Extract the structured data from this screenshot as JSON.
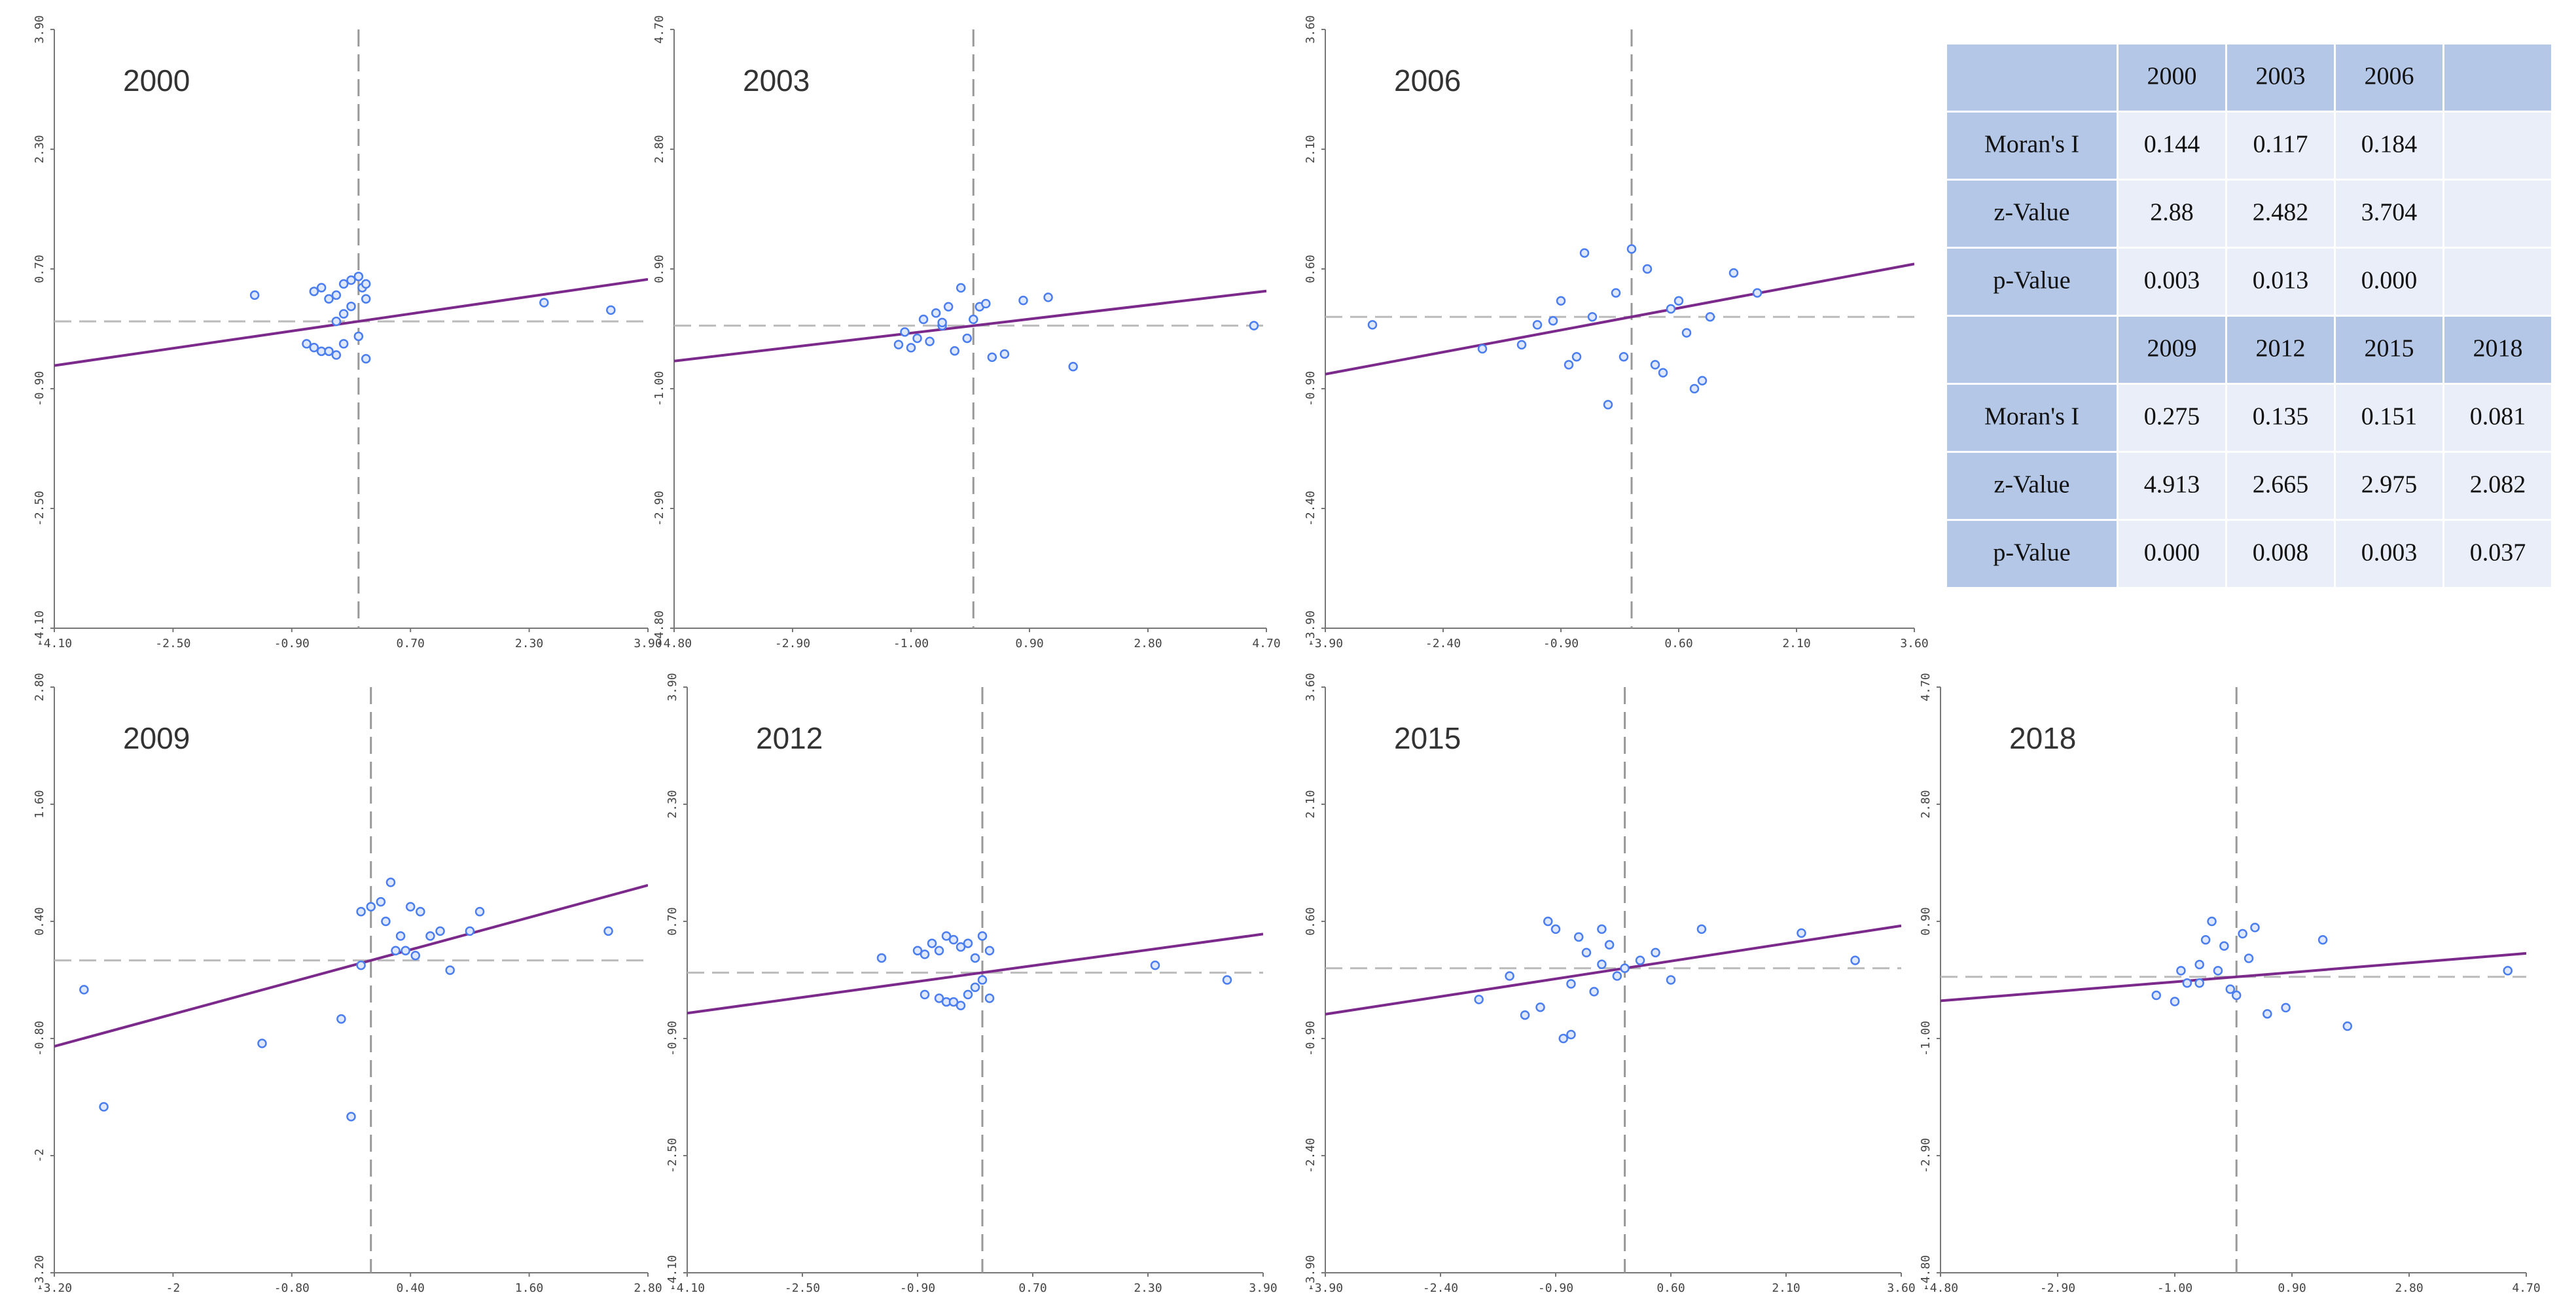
{
  "chart_data": [
    {
      "type": "scatter",
      "title": "2000",
      "color": "#4a7ef0",
      "line_color": "#7b2a8c",
      "xlim": [
        -4.1,
        3.9
      ],
      "ylim": [
        -4.1,
        3.9
      ],
      "xticks": [
        {
          "value": -4.1,
          "label": "-4.10"
        },
        {
          "value": -2.5,
          "label": "-2.50"
        },
        {
          "value": -0.9,
          "label": "-0.90"
        },
        {
          "value": 0.7,
          "label": "0.70"
        },
        {
          "value": 2.3,
          "label": "2.30"
        },
        {
          "value": 3.9,
          "label": "3.90"
        }
      ],
      "yticks": [
        {
          "value": -4.1,
          "label": "-4.10"
        },
        {
          "value": -2.5,
          "label": "-2.50"
        },
        {
          "value": -0.9,
          "label": "-0.90"
        },
        {
          "value": 0.7,
          "label": "0.70"
        },
        {
          "value": 2.3,
          "label": "2.30"
        },
        {
          "value": 3.9,
          "label": "3.90"
        }
      ],
      "x": [
        -1.4,
        -0.6,
        -0.5,
        -0.4,
        -0.3,
        -0.2,
        -0.1,
        0,
        0.05,
        0.1,
        0.1,
        -0.2,
        -0.3,
        -0.7,
        -0.6,
        -0.5,
        -0.4,
        -0.3,
        -0.2,
        0.1,
        0,
        -0.1,
        2.5,
        3.4
      ],
      "y": [
        0.35,
        0.4,
        0.45,
        0.3,
        0.35,
        0.5,
        0.55,
        0.6,
        0.45,
        0.3,
        0.5,
        0.1,
        0.0,
        -0.3,
        -0.35,
        -0.4,
        -0.4,
        -0.45,
        -0.3,
        -0.5,
        -0.2,
        0.2,
        0.25,
        0.15
      ]
    },
    {
      "type": "scatter",
      "title": "2003",
      "color": "#4a7ef0",
      "line_color": "#7b2a8c",
      "xlim": [
        -4.8,
        4.7
      ],
      "ylim": [
        -4.8,
        4.7
      ],
      "xticks": [
        {
          "value": -4.8,
          "label": "-4.80"
        },
        {
          "value": -2.9,
          "label": "-2.90"
        },
        {
          "value": -1.0,
          "label": "-1.00"
        },
        {
          "value": 0.9,
          "label": "0.90"
        },
        {
          "value": 2.8,
          "label": "2.80"
        },
        {
          "value": 4.7,
          "label": "4.70"
        }
      ],
      "yticks": [
        {
          "value": -4.8,
          "label": "-4.80"
        },
        {
          "value": -2.9,
          "label": "-2.90"
        },
        {
          "value": -1.0,
          "label": "-1.00"
        },
        {
          "value": 0.9,
          "label": "0.90"
        },
        {
          "value": 2.8,
          "label": "2.80"
        },
        {
          "value": 4.7,
          "label": "4.70"
        }
      ],
      "x": [
        -1.2,
        -1.1,
        -1.0,
        -0.9,
        -0.8,
        -0.7,
        -0.6,
        -0.5,
        -0.4,
        -0.3,
        -0.2,
        -0.1,
        0,
        0.1,
        0.2,
        0.3,
        0.5,
        0.8,
        1.2,
        1.6,
        -0.5,
        4.5
      ],
      "y": [
        -0.3,
        -0.1,
        -0.35,
        -0.2,
        0.1,
        -0.25,
        0.2,
        0.0,
        0.3,
        -0.4,
        0.6,
        -0.2,
        0.1,
        0.3,
        0.35,
        -0.5,
        -0.45,
        0.4,
        0.45,
        -0.65,
        0.05,
        0.0
      ]
    },
    {
      "type": "scatter",
      "title": "2006",
      "color": "#4a7ef0",
      "line_color": "#7b2a8c",
      "xlim": [
        -3.9,
        3.6
      ],
      "ylim": [
        -3.9,
        3.6
      ],
      "xticks": [
        {
          "value": -3.9,
          "label": "-3.90"
        },
        {
          "value": -2.4,
          "label": "-2.40"
        },
        {
          "value": -0.9,
          "label": "-0.90"
        },
        {
          "value": 0.6,
          "label": "0.60"
        },
        {
          "value": 2.1,
          "label": "2.10"
        },
        {
          "value": 3.6,
          "label": "3.60"
        }
      ],
      "yticks": [
        {
          "value": -3.9,
          "label": "-3.90"
        },
        {
          "value": -2.4,
          "label": "-2.40"
        },
        {
          "value": -0.9,
          "label": "-0.90"
        },
        {
          "value": 0.6,
          "label": "0.60"
        },
        {
          "value": 2.1,
          "label": "2.10"
        },
        {
          "value": 3.6,
          "label": "3.60"
        }
      ],
      "x": [
        -3.3,
        -1.9,
        -1.4,
        -1.2,
        -1.0,
        -0.9,
        -0.8,
        -0.7,
        -0.6,
        -0.5,
        -0.3,
        -0.2,
        -0.1,
        0,
        0.2,
        0.3,
        0.4,
        0.5,
        0.6,
        0.7,
        0.8,
        0.9,
        1.0,
        1.3,
        1.6
      ],
      "y": [
        -0.1,
        -0.4,
        -0.35,
        -0.1,
        -0.05,
        0.2,
        -0.6,
        -0.5,
        0.8,
        0.0,
        -1.1,
        0.3,
        -0.5,
        0.85,
        0.6,
        -0.6,
        -0.7,
        0.1,
        0.2,
        -0.2,
        -0.9,
        -0.8,
        0.0,
        0.55,
        0.3
      ]
    },
    {
      "type": "scatter",
      "title": "2009",
      "color": "#4a7ef0",
      "line_color": "#7b2a8c",
      "xlim": [
        -3.2,
        2.8
      ],
      "ylim": [
        -3.2,
        2.8
      ],
      "xticks": [
        {
          "value": -3.2,
          "label": "-3.20"
        },
        -2,
        {
          "value": -0.8,
          "label": "-0.80"
        },
        {
          "value": 0.4,
          "label": "0.40"
        },
        {
          "value": 1.6,
          "label": "1.60"
        },
        {
          "value": 2.8,
          "label": "2.80"
        }
      ],
      "yticks": [
        {
          "value": -3.2,
          "label": "-3.20"
        },
        -2,
        {
          "value": -0.8,
          "label": "-0.80"
        },
        {
          "value": 0.4,
          "label": "0.40"
        },
        {
          "value": 1.6,
          "label": "1.60"
        },
        {
          "value": 2.8,
          "label": "2.80"
        }
      ],
      "x": [
        -2.9,
        -2.7,
        -1.1,
        -0.3,
        -0.2,
        -0.1,
        0,
        0.1,
        0.15,
        0.2,
        0.25,
        0.3,
        0.35,
        0.4,
        0.5,
        0.6,
        0.7,
        0.8,
        1.0,
        1.1,
        2.4,
        -0.1,
        0.45
      ],
      "y": [
        -0.3,
        -1.5,
        -0.85,
        -0.6,
        -1.6,
        0.5,
        0.55,
        0.6,
        0.4,
        0.8,
        0.1,
        0.25,
        0.1,
        0.55,
        0.5,
        0.25,
        0.3,
        -0.1,
        0.3,
        0.5,
        0.3,
        -0.05,
        0.05
      ]
    },
    {
      "type": "scatter",
      "title": "2012",
      "color": "#4a7ef0",
      "line_color": "#7b2a8c",
      "xlim": [
        -4.1,
        3.9
      ],
      "ylim": [
        -4.1,
        3.9
      ],
      "xticks": [
        {
          "value": -4.1,
          "label": "-4.10"
        },
        {
          "value": -2.5,
          "label": "-2.50"
        },
        {
          "value": -0.9,
          "label": "-0.90"
        },
        {
          "value": 0.7,
          "label": "0.70"
        },
        {
          "value": 2.3,
          "label": "2.30"
        },
        {
          "value": 3.9,
          "label": "3.90"
        }
      ],
      "yticks": [
        {
          "value": -4.1,
          "label": "-4.10"
        },
        {
          "value": -2.5,
          "label": "-2.50"
        },
        {
          "value": -0.9,
          "label": "-0.90"
        },
        {
          "value": 0.7,
          "label": "0.70"
        },
        {
          "value": 2.3,
          "label": "2.30"
        },
        {
          "value": 3.9,
          "label": "3.90"
        }
      ],
      "x": [
        -1.4,
        -0.9,
        -0.8,
        -0.7,
        -0.6,
        -0.5,
        -0.4,
        -0.3,
        -0.2,
        -0.1,
        0,
        0.1,
        -0.8,
        -0.6,
        -0.5,
        -0.4,
        -0.3,
        -0.2,
        -0.1,
        0,
        0.1,
        2.4,
        3.4
      ],
      "y": [
        0.2,
        0.3,
        0.25,
        0.4,
        0.3,
        0.5,
        0.45,
        0.35,
        0.4,
        0.2,
        0.5,
        0.3,
        -0.3,
        -0.35,
        -0.4,
        -0.4,
        -0.45,
        -0.3,
        -0.2,
        -0.1,
        -0.35,
        0.1,
        -0.1
      ]
    },
    {
      "type": "scatter",
      "title": "2015",
      "color": "#4a7ef0",
      "line_color": "#7b2a8c",
      "xlim": [
        -3.9,
        3.6
      ],
      "ylim": [
        -3.9,
        3.6
      ],
      "xticks": [
        {
          "value": -3.9,
          "label": "-3.90"
        },
        {
          "value": -2.4,
          "label": "-2.40"
        },
        {
          "value": -0.9,
          "label": "-0.90"
        },
        {
          "value": 0.6,
          "label": "0.60"
        },
        {
          "value": 2.1,
          "label": "2.10"
        },
        {
          "value": 3.6,
          "label": "3.60"
        }
      ],
      "yticks": [
        {
          "value": -3.9,
          "label": "-3.90"
        },
        {
          "value": -2.4,
          "label": "-2.40"
        },
        {
          "value": -0.9,
          "label": "-0.90"
        },
        {
          "value": 0.6,
          "label": "0.60"
        },
        {
          "value": 2.1,
          "label": "2.10"
        },
        {
          "value": 3.6,
          "label": "3.60"
        }
      ],
      "x": [
        -1.9,
        -1.5,
        -1.3,
        -1.1,
        -1.0,
        -0.9,
        -0.8,
        -0.7,
        -0.6,
        -0.5,
        -0.4,
        -0.3,
        -0.2,
        -0.1,
        0,
        0.2,
        0.4,
        0.6,
        1.0,
        2.3,
        3.0,
        -0.7,
        -0.3
      ],
      "y": [
        -0.4,
        -0.1,
        -0.6,
        -0.5,
        0.6,
        0.5,
        -0.9,
        -0.85,
        0.4,
        0.2,
        -0.3,
        0.5,
        0.3,
        -0.1,
        0.0,
        0.1,
        0.2,
        -0.15,
        0.5,
        0.45,
        0.1,
        -0.2,
        0.05
      ]
    },
    {
      "type": "scatter",
      "title": "2018",
      "color": "#4a7ef0",
      "line_color": "#7b2a8c",
      "xlim": [
        -4.8,
        4.7
      ],
      "ylim": [
        -4.8,
        4.7
      ],
      "xticks": [
        {
          "value": -4.8,
          "label": "-4.80"
        },
        {
          "value": -2.9,
          "label": "-2.90"
        },
        {
          "value": -1.0,
          "label": "-1.00"
        },
        {
          "value": 0.9,
          "label": "0.90"
        },
        {
          "value": 2.8,
          "label": "2.80"
        },
        {
          "value": 4.7,
          "label": "4.70"
        }
      ],
      "yticks": [
        {
          "value": -4.8,
          "label": "-4.80"
        },
        {
          "value": -2.9,
          "label": "-2.90"
        },
        {
          "value": -1.0,
          "label": "-1.00"
        },
        {
          "value": 0.9,
          "label": "0.90"
        },
        {
          "value": 2.8,
          "label": "2.80"
        },
        {
          "value": 4.7,
          "label": "4.70"
        }
      ],
      "x": [
        -1.3,
        -1.0,
        -0.9,
        -0.8,
        -0.6,
        -0.5,
        -0.4,
        -0.3,
        -0.2,
        -0.1,
        0,
        0.1,
        0.3,
        0.5,
        0.8,
        1.4,
        1.8,
        4.4,
        -0.6,
        0.2
      ],
      "y": [
        -0.3,
        -0.4,
        0.1,
        -0.1,
        0.2,
        0.6,
        0.9,
        0.1,
        0.5,
        -0.2,
        -0.3,
        0.7,
        0.8,
        -0.6,
        -0.5,
        0.6,
        -0.8,
        0.1,
        -0.1,
        0.3
      ]
    }
  ],
  "table": {
    "blocks": [
      {
        "header": [
          "2000",
          "2003",
          "2006"
        ],
        "rows": [
          [
            "Moran's I",
            "0.144",
            "0.117",
            "0.184"
          ],
          [
            "z-Value",
            "2.88",
            "2.482",
            "3.704"
          ],
          [
            "p-Value",
            "0.003",
            "0.013",
            "0.000"
          ]
        ]
      },
      {
        "header": [
          "2009",
          "2012",
          "2015",
          "2018"
        ],
        "rows": [
          [
            "Moran's I",
            "0.275",
            "0.135",
            "0.151",
            "0.081"
          ],
          [
            "z-Value",
            "4.913",
            "2.665",
            "2.975",
            "2.082"
          ],
          [
            "p-Value",
            "0.000",
            "0.008",
            "0.003",
            "0.037"
          ]
        ]
      }
    ]
  }
}
